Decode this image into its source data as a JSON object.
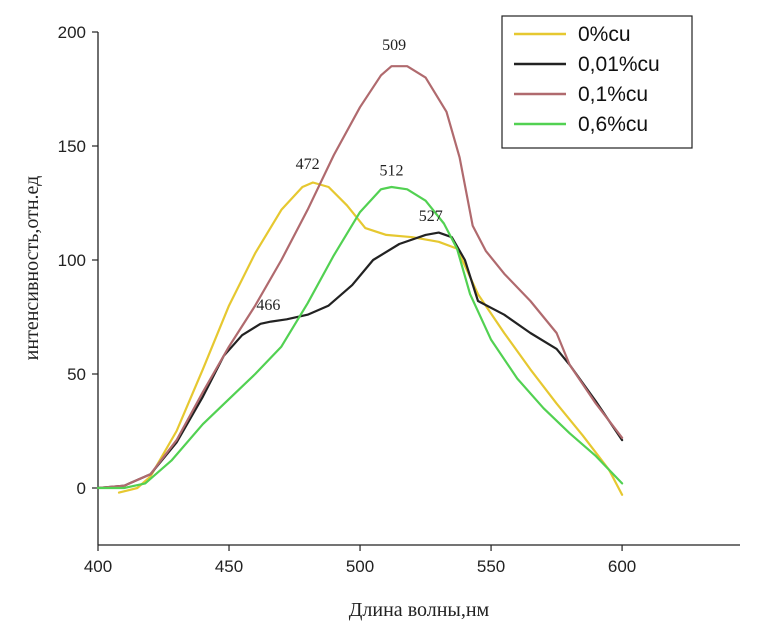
{
  "chart_data": {
    "type": "line",
    "xlabel": "Длина волны,нм",
    "ylabel": "интенсивность,отн.ед",
    "xlim": [
      400,
      645
    ],
    "ylim": [
      -25,
      200
    ],
    "xticks": [
      400,
      450,
      500,
      550,
      600
    ],
    "yticks": [
      0,
      50,
      100,
      150,
      200
    ],
    "grid": false,
    "legend_position": "top-right",
    "series": [
      {
        "name": "0%cu",
        "color": "#e6c830",
        "points": [
          [
            408,
            -2
          ],
          [
            415,
            0
          ],
          [
            420,
            5
          ],
          [
            430,
            25
          ],
          [
            440,
            52
          ],
          [
            450,
            80
          ],
          [
            460,
            103
          ],
          [
            470,
            122
          ],
          [
            478,
            132
          ],
          [
            482,
            134
          ],
          [
            488,
            132
          ],
          [
            495,
            124
          ],
          [
            502,
            114
          ],
          [
            510,
            111
          ],
          [
            520,
            110
          ],
          [
            530,
            108
          ],
          [
            537,
            105
          ],
          [
            545,
            85
          ],
          [
            555,
            68
          ],
          [
            565,
            52
          ],
          [
            575,
            37
          ],
          [
            585,
            23
          ],
          [
            595,
            8
          ],
          [
            600,
            -3
          ]
        ]
      },
      {
        "name": "0,01%cu",
        "color": "#222222",
        "points": [
          [
            400,
            0
          ],
          [
            410,
            1
          ],
          [
            420,
            6
          ],
          [
            430,
            20
          ],
          [
            440,
            40
          ],
          [
            448,
            58
          ],
          [
            455,
            67
          ],
          [
            462,
            72
          ],
          [
            466,
            73
          ],
          [
            472,
            74
          ],
          [
            480,
            76
          ],
          [
            488,
            80
          ],
          [
            497,
            89
          ],
          [
            505,
            100
          ],
          [
            515,
            107
          ],
          [
            525,
            111
          ],
          [
            530,
            112
          ],
          [
            535,
            110
          ],
          [
            540,
            100
          ],
          [
            545,
            82
          ],
          [
            555,
            76
          ],
          [
            565,
            68
          ],
          [
            575,
            61
          ],
          [
            580,
            54
          ],
          [
            590,
            38
          ],
          [
            600,
            21
          ]
        ]
      },
      {
        "name": "0,1%cu",
        "color": "#b06a6e",
        "points": [
          [
            400,
            0
          ],
          [
            410,
            1
          ],
          [
            420,
            6
          ],
          [
            430,
            21
          ],
          [
            440,
            42
          ],
          [
            450,
            62
          ],
          [
            460,
            80
          ],
          [
            470,
            100
          ],
          [
            480,
            122
          ],
          [
            490,
            146
          ],
          [
            500,
            167
          ],
          [
            508,
            181
          ],
          [
            512,
            185
          ],
          [
            518,
            185
          ],
          [
            525,
            180
          ],
          [
            533,
            165
          ],
          [
            538,
            145
          ],
          [
            543,
            115
          ],
          [
            548,
            104
          ],
          [
            555,
            94
          ],
          [
            565,
            82
          ],
          [
            575,
            68
          ],
          [
            580,
            54
          ],
          [
            590,
            37
          ],
          [
            600,
            22
          ]
        ]
      },
      {
        "name": "0,6%cu",
        "color": "#52d152",
        "points": [
          [
            400,
            0
          ],
          [
            410,
            0
          ],
          [
            418,
            2
          ],
          [
            428,
            12
          ],
          [
            440,
            28
          ],
          [
            450,
            39
          ],
          [
            460,
            50
          ],
          [
            470,
            62
          ],
          [
            480,
            81
          ],
          [
            490,
            102
          ],
          [
            500,
            121
          ],
          [
            508,
            131
          ],
          [
            512,
            132
          ],
          [
            518,
            131
          ],
          [
            525,
            126
          ],
          [
            532,
            116
          ],
          [
            537,
            105
          ],
          [
            542,
            85
          ],
          [
            550,
            65
          ],
          [
            560,
            48
          ],
          [
            570,
            35
          ],
          [
            580,
            24
          ],
          [
            590,
            14
          ],
          [
            600,
            2
          ]
        ]
      }
    ],
    "annotations": [
      {
        "text": "472",
        "x": 480,
        "y": 140
      },
      {
        "text": "466",
        "x": 465,
        "y": 78
      },
      {
        "text": "509",
        "x": 513,
        "y": 192
      },
      {
        "text": "512",
        "x": 512,
        "y": 137
      },
      {
        "text": "527",
        "x": 527,
        "y": 117
      }
    ]
  }
}
